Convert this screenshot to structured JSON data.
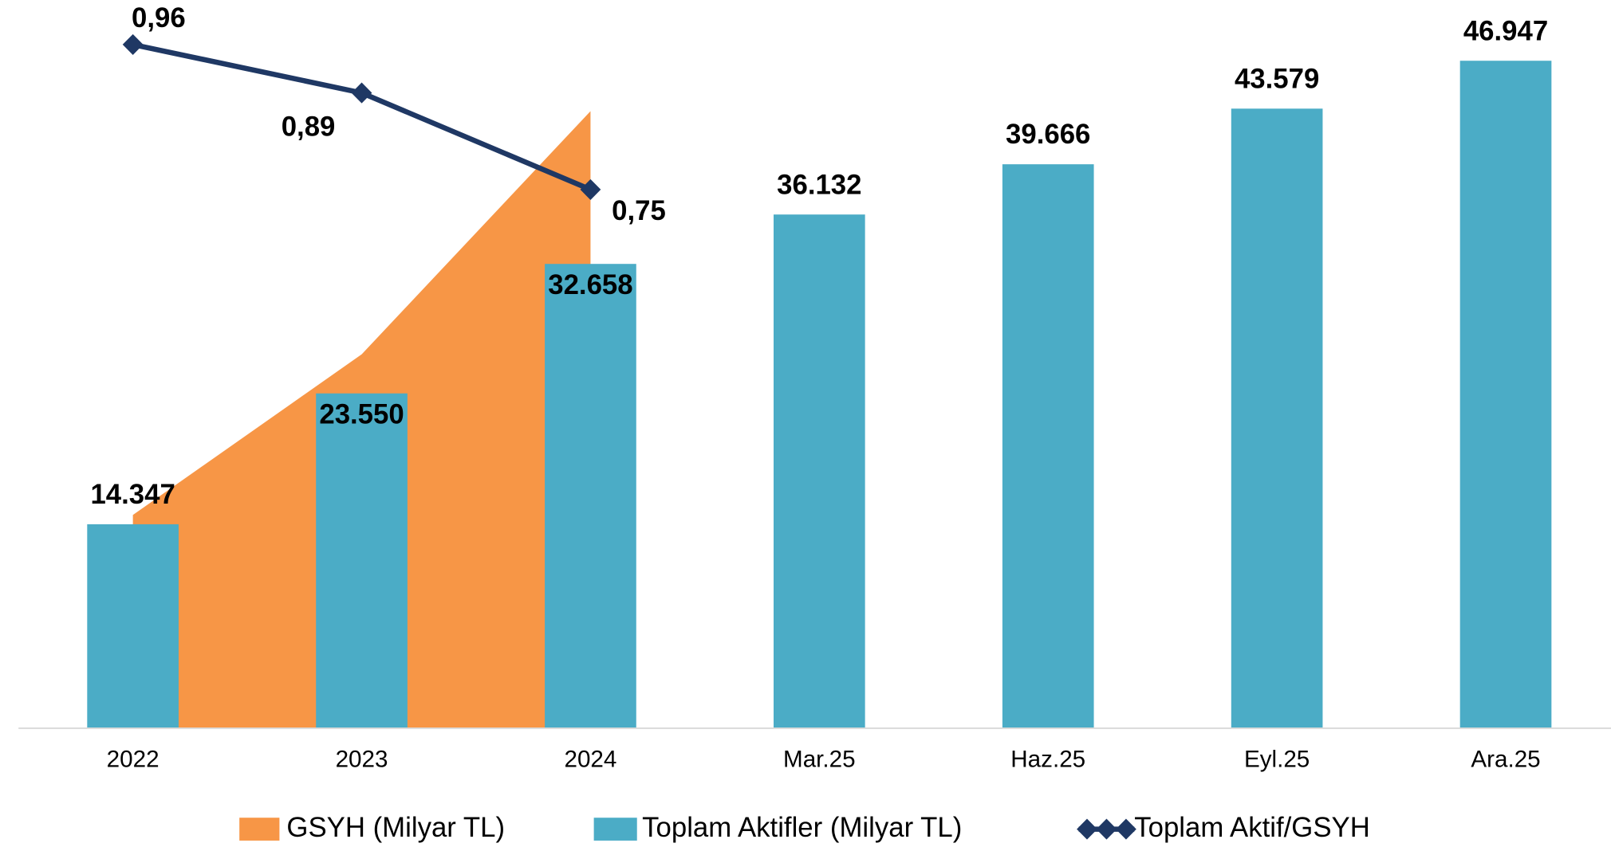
{
  "chart_data": {
    "type": "bar_area_line",
    "categories": [
      "2022",
      "2023",
      "2024",
      "Mar.25",
      "Haz.25",
      "Eyl.25",
      "Ara.25"
    ],
    "series": [
      {
        "name": "GSYH (Milyar TL)",
        "color": "#f79646",
        "kind": "area",
        "values": [
          15000,
          26300,
          43400,
          null,
          null,
          null,
          null
        ]
      },
      {
        "name": "Toplam Aktifler (Milyar TL)",
        "color": "#4bacc6",
        "kind": "bar",
        "values": [
          14347,
          23550,
          32658,
          36132,
          39666,
          43579,
          46947
        ],
        "value_labels": [
          "14.347",
          "23.550",
          "32.658",
          "36.132",
          "39.666",
          "43.579",
          "46.947"
        ]
      },
      {
        "name": "Toplam Aktif/GSYH",
        "color": "#1f3864",
        "kind": "line",
        "axis": "y2",
        "values": [
          0.96,
          0.89,
          0.75,
          null,
          null,
          null,
          null
        ],
        "value_labels": [
          "0,96",
          "0,89",
          "0,75",
          null,
          null,
          null,
          null
        ]
      }
    ],
    "ylim": [
      0,
      51000
    ],
    "y2lim": [
      -0.03,
      1.02
    ],
    "legend": "bottom"
  }
}
